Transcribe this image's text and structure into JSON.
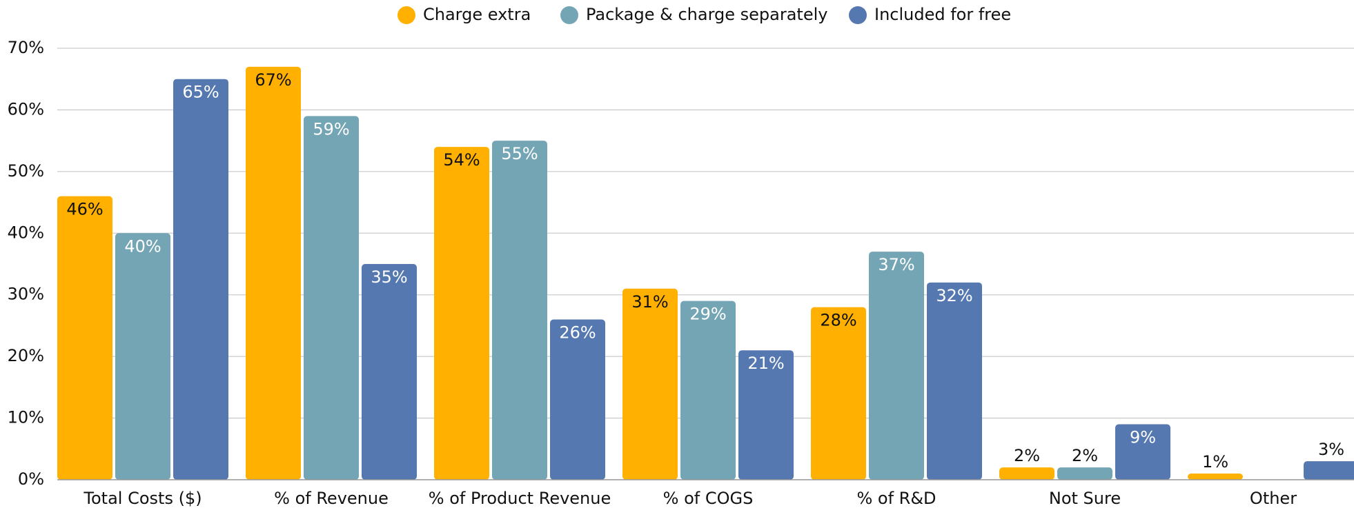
{
  "chart_data": {
    "type": "bar",
    "categories": [
      "Total Costs ($)",
      "% of Revenue",
      "% of Product Revenue",
      "% of COGS",
      "% of R&D",
      "Not Sure",
      "Other"
    ],
    "series": [
      {
        "name": "Charge extra",
        "color": "#FFB000",
        "label_color": "#111111",
        "values": [
          46,
          67,
          54,
          31,
          28,
          2,
          1
        ],
        "value_labels": [
          "46%",
          "67%",
          "54%",
          "31%",
          "28%",
          "2%",
          "1%"
        ]
      },
      {
        "name": "Package & charge separately",
        "color": "#74A5B4",
        "label_color": "#ffffff",
        "values": [
          40,
          59,
          55,
          29,
          37,
          2,
          null
        ],
        "value_labels": [
          "40%",
          "59%",
          "55%",
          "29%",
          "37%",
          "2%",
          null
        ]
      },
      {
        "name": "Included for free",
        "color": "#5578B0",
        "label_color": "#ffffff",
        "values": [
          65,
          35,
          26,
          21,
          32,
          9,
          3
        ],
        "value_labels": [
          "65%",
          "35%",
          "26%",
          "21%",
          "32%",
          "9%",
          "3%"
        ]
      }
    ],
    "ylim": [
      0,
      70
    ],
    "yticks": [
      {
        "value": 0,
        "label": "0%"
      },
      {
        "value": 10,
        "label": "10%"
      },
      {
        "value": 20,
        "label": "20%"
      },
      {
        "value": 30,
        "label": "30%"
      },
      {
        "value": 40,
        "label": "40%"
      },
      {
        "value": 50,
        "label": "50%"
      },
      {
        "value": 60,
        "label": "60%"
      },
      {
        "value": 70,
        "label": "70%"
      }
    ],
    "grid": true,
    "legend": "top"
  }
}
